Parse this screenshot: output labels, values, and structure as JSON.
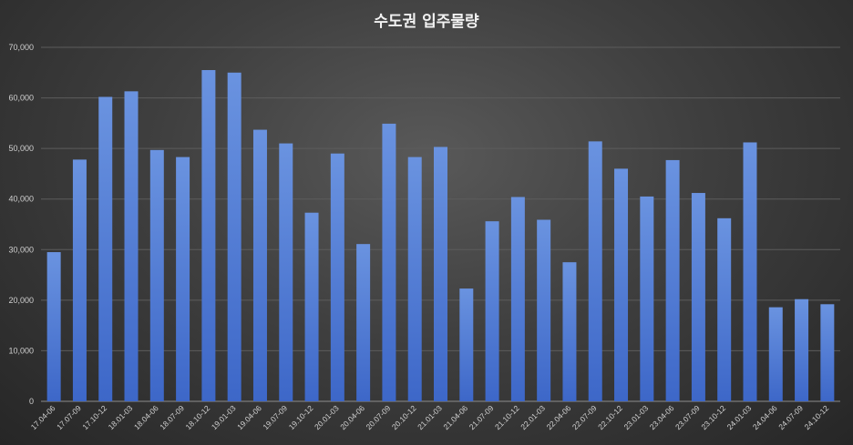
{
  "chart_data": {
    "type": "bar",
    "title": "수도권 입주물량",
    "xlabel": "",
    "ylabel": "",
    "ylim": [
      0,
      70000
    ],
    "yticks": [
      0,
      10000,
      20000,
      30000,
      40000,
      50000,
      60000,
      70000
    ],
    "ytick_labels": [
      "0",
      "10,000",
      "20,000",
      "30,000",
      "40,000",
      "50,000",
      "60,000",
      "70,000"
    ],
    "grid": true,
    "legend": "none",
    "bar_color": "#4f7fd8",
    "categories": [
      "17.04-06",
      "17.07-09",
      "17.10-12",
      "18.01-03",
      "18.04-06",
      "18.07-09",
      "18.10-12",
      "19.01-03",
      "19.04-06",
      "19.07-09",
      "19.10-12",
      "20.01-03",
      "20.04-06",
      "20.07-09",
      "20.10-12",
      "21.01-03",
      "21.04-06",
      "21.07-09",
      "21.10-12",
      "22.01-03",
      "22.04-06",
      "22.07-09",
      "22.10-12",
      "23.01-03",
      "23.04-06",
      "23.07-09",
      "23.10-12",
      "24.01-03",
      "24.04-06",
      "24.07-09",
      "24.10-12"
    ],
    "values": [
      29500,
      47800,
      60200,
      61300,
      49700,
      48300,
      65500,
      65000,
      53700,
      51000,
      37300,
      49000,
      31100,
      54900,
      48300,
      50300,
      22300,
      35600,
      40400,
      35900,
      27500,
      51400,
      46000,
      40500,
      47700,
      41200,
      36200,
      51200,
      18600,
      20200,
      19200
    ]
  }
}
